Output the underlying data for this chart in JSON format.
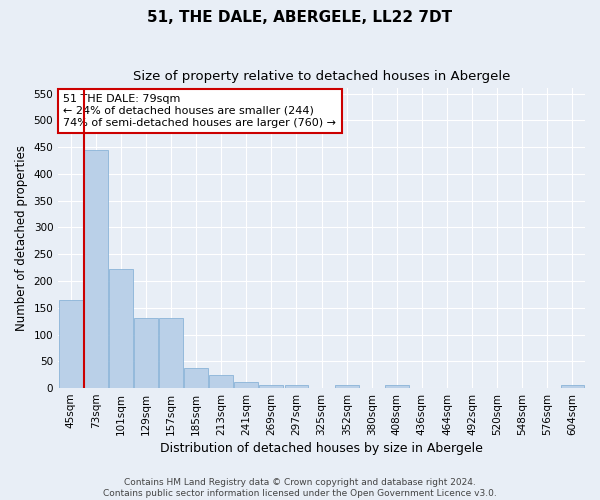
{
  "title": "51, THE DALE, ABERGELE, LL22 7DT",
  "subtitle": "Size of property relative to detached houses in Abergele",
  "xlabel": "Distribution of detached houses by size in Abergele",
  "ylabel": "Number of detached properties",
  "footer_line1": "Contains HM Land Registry data © Crown copyright and database right 2024.",
  "footer_line2": "Contains public sector information licensed under the Open Government Licence v3.0.",
  "bin_labels": [
    "45sqm",
    "73sqm",
    "101sqm",
    "129sqm",
    "157sqm",
    "185sqm",
    "213sqm",
    "241sqm",
    "269sqm",
    "297sqm",
    "325sqm",
    "352sqm",
    "380sqm",
    "408sqm",
    "436sqm",
    "464sqm",
    "492sqm",
    "520sqm",
    "548sqm",
    "576sqm",
    "604sqm"
  ],
  "bar_values": [
    165,
    445,
    222,
    130,
    130,
    37,
    25,
    11,
    6,
    6,
    0,
    5,
    0,
    5,
    0,
    0,
    0,
    0,
    0,
    0,
    5
  ],
  "bar_color": "#bad0e8",
  "bar_edge_color": "#8ab4d8",
  "highlight_bar_index": 1,
  "annotation_text": "51 THE DALE: 79sqm\n← 24% of detached houses are smaller (244)\n74% of semi-detached houses are larger (760) →",
  "annotation_box_color": "white",
  "annotation_box_edge_color": "#cc0000",
  "vline_color": "#cc0000",
  "ylim": [
    0,
    560
  ],
  "yticks": [
    0,
    50,
    100,
    150,
    200,
    250,
    300,
    350,
    400,
    450,
    500,
    550
  ],
  "bg_color": "#e8eef6",
  "grid_color": "white",
  "title_fontsize": 11,
  "subtitle_fontsize": 9.5,
  "axis_label_fontsize": 8.5,
  "tick_fontsize": 7.5,
  "annotation_fontsize": 8,
  "footer_fontsize": 6.5
}
